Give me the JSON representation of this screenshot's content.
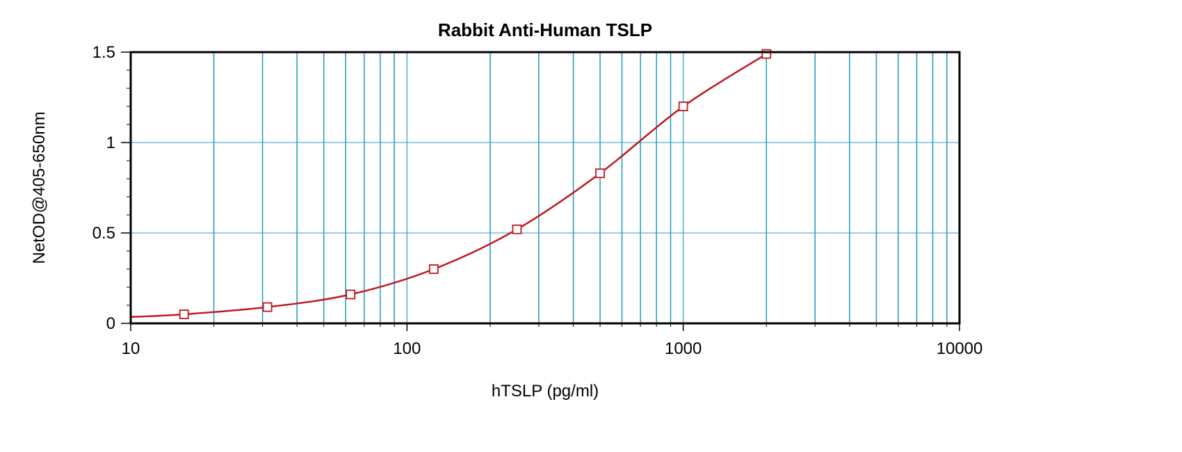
{
  "chart_data": {
    "type": "scatter",
    "title": "Rabbit Anti-Human TSLP",
    "xlabel": "hTSLP (pg/ml)",
    "ylabel": "NetOD@405-650nm",
    "x_scale": "log",
    "xlim": [
      10,
      10000
    ],
    "ylim": [
      0,
      1.5
    ],
    "x_ticks": [
      10,
      100,
      1000,
      10000
    ],
    "x_tick_labels": [
      "10",
      "100",
      "1000",
      "10000"
    ],
    "y_ticks": [
      0,
      0.5,
      1,
      1.5
    ],
    "y_tick_labels": [
      "0",
      "0.5",
      "1",
      "1.5"
    ],
    "grid": true,
    "legend": "none",
    "series": [
      {
        "x": [
          15.6,
          31.25,
          62.5,
          125,
          250,
          500,
          1000,
          2000
        ],
        "y": [
          0.05,
          0.09,
          0.16,
          0.3,
          0.52,
          0.83,
          1.2,
          1.49
        ],
        "marker": "square",
        "fit": "4PL"
      }
    ],
    "colors": {
      "curve": "#c0161d",
      "marker": "#c0161d",
      "grid": "#2a9fc0",
      "frame": "#000000"
    }
  }
}
